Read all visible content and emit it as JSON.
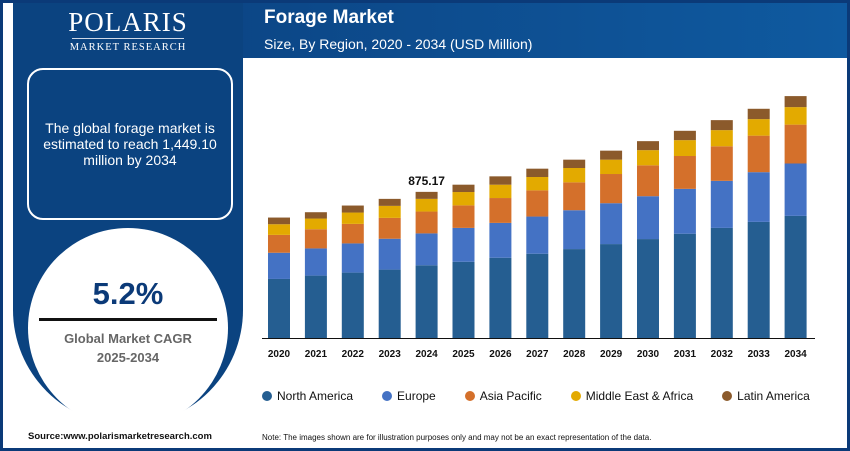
{
  "brand": {
    "name": "POLARIS",
    "sub": "MARKET RESEARCH"
  },
  "summary": {
    "text": "The global forage market is estimated to reach 1,449.10 million by 2034"
  },
  "cagr": {
    "value": "5.2%",
    "label": "Global Market CAGR",
    "period": "2025-2034"
  },
  "source": "Source:www.polarismarketresearch.com",
  "note": "Note: The images shown are for illustration purposes only and may not be an exact representation of the data.",
  "chart_data": {
    "type": "bar",
    "stacked": true,
    "title": "Forage Market",
    "subtitle": "Size, By Region, 2020 - 2034 (USD Million)",
    "xlabel": "",
    "ylabel": "",
    "ylim": [
      0,
      1500
    ],
    "categories": [
      "2020",
      "2021",
      "2022",
      "2023",
      "2024",
      "2025",
      "2026",
      "2027",
      "2028",
      "2029",
      "2030",
      "2031",
      "2032",
      "2033",
      "2034"
    ],
    "series": [
      {
        "name": "North America",
        "color": "#255e91",
        "values": [
          354,
          374,
          392,
          410,
          436,
          457,
          481,
          505,
          533,
          563,
          593,
          625,
          660,
          696,
          732
        ]
      },
      {
        "name": "Europe",
        "color": "#4472c4",
        "values": [
          157,
          163,
          175,
          185,
          191,
          203,
          209,
          223,
          233,
          245,
          257,
          269,
          282,
          298,
          314
        ]
      },
      {
        "name": "Asia Pacific",
        "color": "#d4702b",
        "values": [
          107,
          115,
          117,
          125,
          131,
          135,
          149,
          157,
          167,
          175,
          185,
          197,
          207,
          219,
          233
        ]
      },
      {
        "name": "Middle East & Africa",
        "color": "#e3aa00",
        "values": [
          64,
          64,
          68,
          72,
          76,
          80,
          80,
          80,
          86,
          86,
          91,
          95,
          97,
          99,
          105
        ]
      },
      {
        "name": "Latin America",
        "color": "#8b5a2b",
        "values": [
          40,
          38,
          42,
          42,
          42,
          44,
          50,
          50,
          50,
          54,
          54,
          56,
          60,
          62,
          66
        ]
      }
    ],
    "annotations": [
      {
        "category": "2024",
        "text": "875.17"
      }
    ],
    "legend": "bottom"
  }
}
